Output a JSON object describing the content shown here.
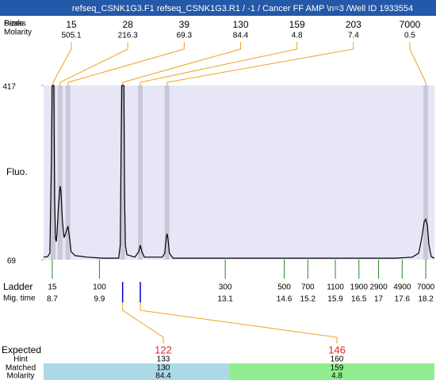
{
  "chart_data": {
    "type": "line",
    "title": "refseq_CSNK1G3.F1  refseq_CSNK1G3.R1 / -1 / Cancer FF AMP \\n=3 /Well ID 1933554",
    "y_label": "Fluo.",
    "ylim": [
      69,
      417
    ],
    "yticks": [
      69,
      417
    ],
    "xlim": [
      8.48,
      18.42
    ],
    "plot_background": "#e6e6f6",
    "trace": {
      "color": "#000000",
      "x": [
        8.48,
        8.58,
        8.64,
        8.68,
        8.7,
        8.72,
        8.74,
        8.76,
        8.78,
        8.8,
        8.82,
        8.86,
        8.9,
        8.92,
        8.96,
        9.0,
        9.04,
        9.08,
        9.1,
        9.14,
        9.18,
        9.28,
        9.59,
        9.99,
        10.39,
        10.43,
        10.45,
        10.47,
        10.49,
        10.52,
        10.54,
        10.56,
        10.6,
        10.8,
        10.9,
        10.94,
        10.98,
        11.04,
        11.5,
        11.56,
        11.6,
        11.62,
        11.64,
        11.68,
        11.77,
        13.42,
        15.44,
        17.45,
        17.86,
        18.02,
        18.1,
        18.16,
        18.2,
        18.24,
        18.28,
        18.34,
        18.42
      ],
      "values": [
        74,
        75,
        82,
        272,
        417,
        417,
        417,
        192,
        113,
        105,
        121,
        177,
        216,
        208,
        145,
        113,
        121,
        132,
        135,
        113,
        85,
        77,
        74,
        72,
        72,
        98,
        272,
        417,
        417,
        417,
        192,
        98,
        79,
        74,
        85,
        98,
        85,
        74,
        74,
        82,
        113,
        121,
        113,
        82,
        72,
        72,
        72,
        72,
        74,
        82,
        113,
        145,
        150,
        137,
        98,
        75,
        72
      ]
    },
    "peaks": {
      "label_peaks": "Peaks",
      "label_sizes": "Sizes",
      "label_molarity": "Molarity",
      "sizes": [
        15,
        28,
        39,
        130,
        159,
        203,
        7000
      ],
      "molarity": [
        505.1,
        216.3,
        69.3,
        84.4,
        4.8,
        7.4,
        0.5
      ],
      "x": [
        8.72,
        8.9,
        9.1,
        10.49,
        10.94,
        11.62,
        18.2
      ],
      "band_color": "#c8c8d8",
      "line_color": "#f0a020"
    },
    "ladder": {
      "label": "Ladder",
      "time_label": "Mig. time",
      "sizes": [
        15,
        100,
        300,
        500,
        700,
        1100,
        1900,
        2900,
        4900,
        7000
      ],
      "x": [
        8.7,
        9.9,
        13.1,
        14.6,
        15.2,
        15.9,
        16.5,
        17,
        17.6,
        18.2
      ],
      "color": "#228822"
    },
    "markers": {
      "x": [
        10.49,
        10.94
      ],
      "color": "#0000cc"
    },
    "expected": {
      "labels": [
        "Expected",
        "Hint",
        "Matched",
        "Molarity"
      ],
      "rows": [
        {
          "expected": 122,
          "hint": 133,
          "matched": 130,
          "molarity": 84.4,
          "color": "#add8e6"
        },
        {
          "expected": 146,
          "hint": 160,
          "matched": 159,
          "molarity": 4.8,
          "color": "#90ee90"
        }
      ],
      "expected_color": "#ee2222"
    }
  }
}
